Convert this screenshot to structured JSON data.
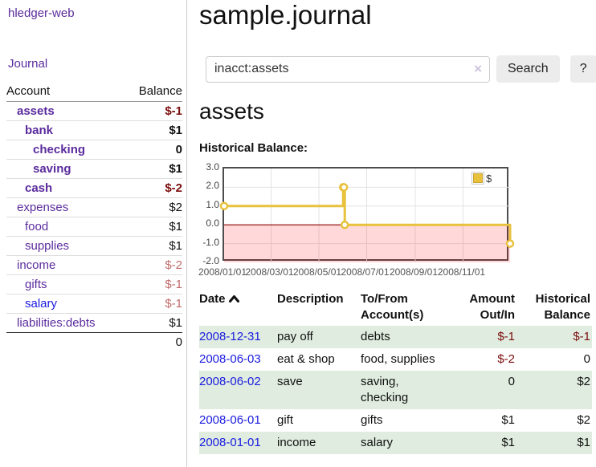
{
  "sidebar": {
    "brand": "hledger-web",
    "nav_journal": "Journal",
    "accounts_header": {
      "account": "Account",
      "balance": "Balance"
    },
    "accounts": [
      {
        "name": "assets",
        "balance": "$-1"
      },
      {
        "name": "bank",
        "balance": "$1"
      },
      {
        "name": "checking",
        "balance": "0"
      },
      {
        "name": "saving",
        "balance": "$1"
      },
      {
        "name": "cash",
        "balance": "$-2"
      },
      {
        "name": "expenses",
        "balance": "$2"
      },
      {
        "name": "food",
        "balance": "$1"
      },
      {
        "name": "supplies",
        "balance": "$1"
      },
      {
        "name": "income",
        "balance": "$-2"
      },
      {
        "name": "gifts",
        "balance": "$-1"
      },
      {
        "name": "salary",
        "balance": "$-1"
      },
      {
        "name": "liabilities:debts",
        "balance": "$1"
      }
    ],
    "total": "0"
  },
  "header": {
    "title": "sample.journal"
  },
  "search": {
    "value": "inacct:assets",
    "clear_icon": "×",
    "button_label": "Search",
    "help_label": "?"
  },
  "account_page": {
    "heading": "assets",
    "chart_title": "Historical Balance:"
  },
  "chart_data": {
    "type": "line",
    "step": true,
    "title": "Historical Balance:",
    "series": [
      {
        "name": "$",
        "color": "#e8c13d",
        "points": [
          {
            "date": "2008-01-01",
            "value": 1
          },
          {
            "date": "2008-06-01",
            "value": 2
          },
          {
            "date": "2008-06-02",
            "value": 2
          },
          {
            "date": "2008-06-03",
            "value": 0
          },
          {
            "date": "2008-12-31",
            "value": -1
          }
        ]
      }
    ],
    "x_range": [
      "2008-01-01",
      "2008-12-31"
    ],
    "x_ticks": [
      {
        "date": "2008-01-01",
        "label": "2008/01/01"
      },
      {
        "date": "2008-03-01",
        "label": "2008/03/01"
      },
      {
        "date": "2008-05-01",
        "label": "2008/05/01"
      },
      {
        "date": "2008-07-01",
        "label": "2008/07/01"
      },
      {
        "date": "2008-09-01",
        "label": "2008/09/01"
      },
      {
        "date": "2008-11-01",
        "label": "2008/11/01"
      }
    ],
    "ylim": [
      -2,
      3
    ],
    "y_ticks": [
      {
        "value": 3,
        "label": "3.0"
      },
      {
        "value": 2,
        "label": "2.0"
      },
      {
        "value": 1,
        "label": "1.0"
      },
      {
        "value": 0,
        "label": "0.0"
      },
      {
        "value": -1,
        "label": "-1.0"
      },
      {
        "value": -2,
        "label": "-2.0"
      }
    ],
    "legend": {
      "label": "$",
      "position": "top-right"
    },
    "grid": true,
    "negative_region_shaded": true,
    "colors": {
      "line": "#e8c13d",
      "marker_fill": "#ffffff",
      "zero_line": "#8b0000",
      "grid_line": "#e3e3e3",
      "negative_fill": "rgba(255,0,0,0.15)",
      "plot_border": "#4d4d4d"
    }
  },
  "register": {
    "columns": {
      "date": "Date",
      "sort_icon": "sort-ascending",
      "description": "Description",
      "tofrom_line1": "To/From",
      "tofrom_line2": "Account(s)",
      "amount_line1": "Amount",
      "amount_line2": "Out/In",
      "balance_line1": "Historical",
      "balance_line2": "Balance"
    },
    "rows": [
      {
        "date": "2008-12-31",
        "description": "pay off",
        "accounts": "debts",
        "amount": "$-1",
        "balance": "$-1"
      },
      {
        "date": "2008-06-03",
        "description": "eat & shop",
        "accounts": "food, supplies",
        "amount": "$-2",
        "balance": "0"
      },
      {
        "date": "2008-06-02",
        "description": "save",
        "accounts": "saving, checking",
        "amount": "0",
        "balance": "$2"
      },
      {
        "date": "2008-06-01",
        "description": "gift",
        "accounts": "gifts",
        "amount": "$1",
        "balance": "$2"
      },
      {
        "date": "2008-01-01",
        "description": "income",
        "accounts": "salary",
        "amount": "$1",
        "balance": "$1"
      }
    ]
  },
  "colors": {
    "link_purple": "#5a2b9d",
    "link_blue": "#1b1be0",
    "negative_dark": "#7b0c0c",
    "negative_light": "#c16b6b",
    "row_green": "#dfecdf"
  }
}
